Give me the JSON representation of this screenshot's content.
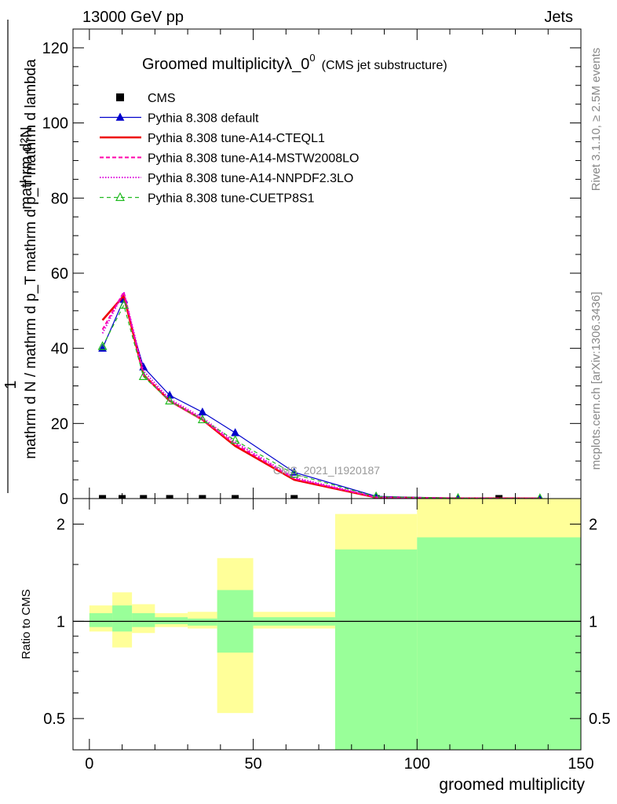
{
  "header": {
    "energy": "13000 GeV pp",
    "process": "Jets"
  },
  "side_text": {
    "rivet": "Rivet 3.1.10, ≥ 2.5M events",
    "mcplots": "mcplots.cern.ch [arXiv:1306.3436]"
  },
  "chart_data": [
    {
      "type": "line",
      "title": "Groomed multiplicityλ_0",
      "title_superscript": "0",
      "subtitle": "(CMS jet substructure)",
      "watermark": "CMS_2021_I1920187",
      "ylabel": {
        "num_1": "1",
        "num_2": "mathrm d²N",
        "den": "mathrm d N / mathrm d p_T mathrm d p_T mathrm d lambda"
      },
      "xlim": [
        -5,
        150
      ],
      "ylim": [
        0,
        125
      ],
      "yticks": [
        0,
        20,
        40,
        60,
        80,
        100,
        120
      ],
      "legend_position": "top-left",
      "series": [
        {
          "name": "CMS",
          "color": "#000000",
          "marker": "square",
          "style": "marker",
          "x": [
            4,
            10,
            16.5,
            24.5,
            34.5,
            44.5,
            62.5,
            87.5,
            125
          ],
          "values": [
            0,
            0,
            0,
            0,
            0,
            0,
            0,
            0,
            0
          ]
        },
        {
          "name": "Pythia 8.308 default",
          "color": "#0000cc",
          "marker": "triangle",
          "style": "solid",
          "x": [
            4,
            10.5,
            16.5,
            24.5,
            34.5,
            44.5,
            62.5,
            87.5,
            112.5,
            137.5
          ],
          "values": [
            40,
            53,
            35,
            27.5,
            23,
            17.5,
            7,
            0.6,
            0.1,
            0.05
          ]
        },
        {
          "name": "Pythia 8.308 tune-A14-CTEQL1",
          "color": "#ee0000",
          "marker": "none",
          "style": "thick",
          "x": [
            4,
            10.5,
            16.5,
            24.5,
            34.5,
            44.5,
            62.5,
            87.5,
            112.5,
            137.5
          ],
          "values": [
            47.5,
            54,
            33,
            26,
            21,
            14,
            5,
            0.3,
            0.05,
            0.02
          ]
        },
        {
          "name": "Pythia 8.308 tune-A14-MSTW2008LO",
          "color": "#ff00aa",
          "marker": "none",
          "style": "dashed",
          "x": [
            4,
            10.5,
            16.5,
            24.5,
            34.5,
            44.5,
            62.5,
            87.5,
            112.5,
            137.5
          ],
          "values": [
            45,
            55,
            33,
            26,
            21,
            14.5,
            5.3,
            0.35,
            0.05,
            0.02
          ]
        },
        {
          "name": "Pythia 8.308 tune-A14-NNPDF2.3LO",
          "color": "#dd00dd",
          "marker": "none",
          "style": "dotted",
          "x": [
            4,
            10.5,
            16.5,
            24.5,
            34.5,
            44.5,
            62.5,
            87.5,
            112.5,
            137.5
          ],
          "values": [
            44,
            55,
            34,
            26.5,
            21.5,
            15,
            5.6,
            0.4,
            0.05,
            0.02
          ]
        },
        {
          "name": "Pythia 8.308 tune-CUETP8S1",
          "color": "#22bb22",
          "marker": "open-triangle",
          "style": "dashed",
          "x": [
            4,
            10.5,
            16.5,
            24.5,
            34.5,
            44.5,
            62.5,
            87.5,
            112.5,
            137.5
          ],
          "values": [
            40.5,
            51.5,
            32.5,
            26,
            21,
            15.5,
            6.5,
            0.5,
            0.08,
            0.03
          ]
        }
      ]
    },
    {
      "type": "area",
      "ylabel": "Ratio to CMS",
      "xlabel": "groomed multiplicity",
      "xlim": [
        -5,
        150
      ],
      "ylim": [
        0.4,
        2.4
      ],
      "scale": "log",
      "xticks": [
        0,
        50,
        100,
        150
      ],
      "yticks": [
        0.5,
        1,
        2
      ],
      "reference": 1,
      "bands": [
        {
          "x0": 0,
          "x1": 7,
          "green_lo": 0.96,
          "green_hi": 1.06,
          "yellow_lo": 0.93,
          "yellow_hi": 1.12
        },
        {
          "x0": 7,
          "x1": 13,
          "green_lo": 0.93,
          "green_hi": 1.12,
          "yellow_lo": 0.83,
          "yellow_hi": 1.23
        },
        {
          "x0": 13,
          "x1": 20,
          "green_lo": 0.96,
          "green_hi": 1.06,
          "yellow_lo": 0.92,
          "yellow_hi": 1.13
        },
        {
          "x0": 20,
          "x1": 30,
          "green_lo": 0.98,
          "green_hi": 1.03,
          "yellow_lo": 0.96,
          "yellow_hi": 1.06
        },
        {
          "x0": 30,
          "x1": 39,
          "green_lo": 0.97,
          "green_hi": 1.02,
          "yellow_lo": 0.95,
          "yellow_hi": 1.07
        },
        {
          "x0": 39,
          "x1": 50,
          "green_lo": 0.8,
          "green_hi": 1.25,
          "yellow_lo": 0.52,
          "yellow_hi": 1.57
        },
        {
          "x0": 50,
          "x1": 75,
          "green_lo": 0.97,
          "green_hi": 1.03,
          "yellow_lo": 0.95,
          "yellow_hi": 1.07
        },
        {
          "x0": 75,
          "x1": 100,
          "green_lo": 0.35,
          "green_hi": 1.67,
          "yellow_lo": 0.35,
          "yellow_hi": 2.15
        },
        {
          "x0": 100,
          "x1": 150,
          "green_lo": 0.35,
          "green_hi": 1.82,
          "yellow_lo": 0.35,
          "yellow_hi": 2.5
        }
      ]
    }
  ]
}
